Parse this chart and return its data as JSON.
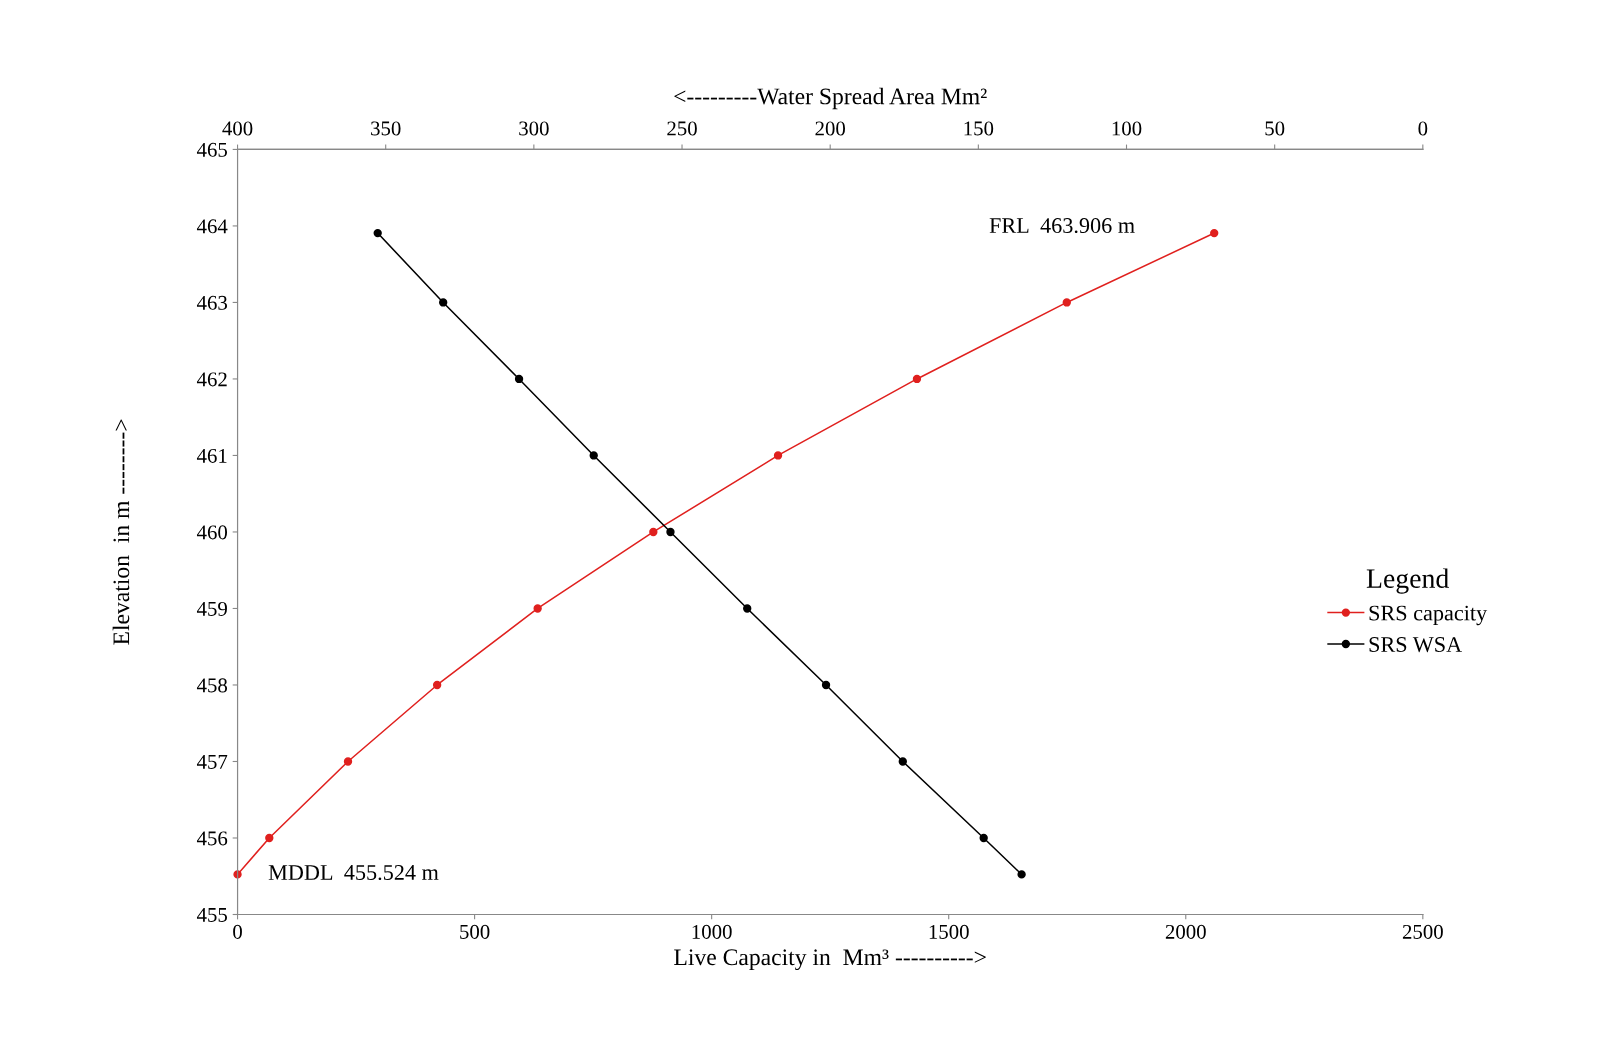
{
  "chart_data": {
    "type": "line",
    "xlabel": "Live Capacity in  Mm³ ---------->",
    "x2label": "<---------Water Spread Area Mm²",
    "ylabel": "Elevation  in m -------->",
    "xlim": [
      0,
      2500
    ],
    "xticks": [
      0,
      500,
      1000,
      1500,
      2000,
      2500
    ],
    "x2lim": [
      400,
      0
    ],
    "x2ticks": [
      400,
      350,
      300,
      250,
      200,
      150,
      100,
      50,
      0
    ],
    "ylim": [
      455,
      465
    ],
    "yticks": [
      455,
      456,
      457,
      458,
      459,
      460,
      461,
      462,
      463,
      464,
      465
    ],
    "series": [
      {
        "name": "SRS capacity",
        "color": "#e0201e",
        "x": [
          0,
          67,
          233,
          421,
          633,
          877,
          1140,
          1433,
          1749,
          2060
        ],
        "values": [
          455.524,
          456,
          457,
          458,
          459,
          460,
          461,
          462,
          463,
          463.906
        ]
      },
      {
        "name": "SRS WSA",
        "color": "#000000",
        "axis": "x2",
        "x": [
          352.7,
          330.6,
          305,
          279.8,
          253.9,
          228,
          201.4,
          175.5,
          148.2,
          135.4
        ],
        "values": [
          463.906,
          463,
          462,
          461,
          460,
          459,
          458,
          457,
          456,
          455.524
        ]
      }
    ],
    "annotations": [
      "FRL  463.906 m",
      {
        "text": "MDDL  455.524 m",
        "x": 0,
        "y": 455.524
      }
    ],
    "legend": "right",
    "legend_title": "Legend",
    "marker": "circle",
    "line_style": "solid",
    "grid": false
  }
}
